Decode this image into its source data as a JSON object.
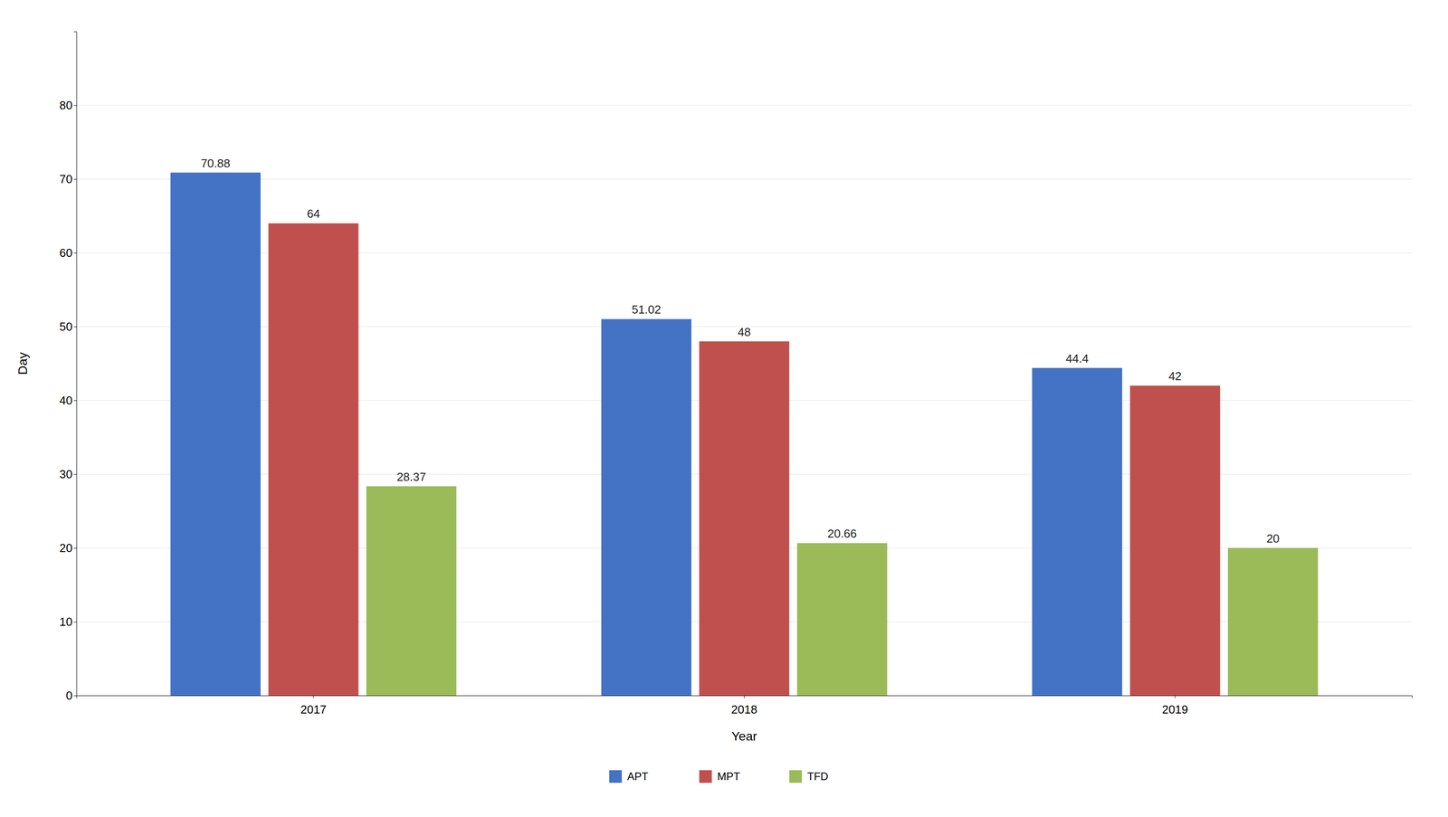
{
  "chart_data": {
    "type": "bar",
    "x_label": "Year",
    "y_label": "Day",
    "categories": [
      "2017",
      "2018",
      "2019"
    ],
    "series": [
      {
        "name": "APT",
        "color": "#4472C4",
        "values": [
          70.88,
          51.02,
          44.4
        ]
      },
      {
        "name": "MPT",
        "color": "#C0504D",
        "values": [
          64,
          48,
          42
        ]
      },
      {
        "name": "TFD",
        "color": "#9BBB59",
        "values": [
          28.37,
          20.66,
          20
        ]
      }
    ],
    "ylim": [
      0,
      90
    ],
    "yticks": [
      0,
      10,
      20,
      30,
      40,
      50,
      60,
      70,
      80
    ],
    "grid": true,
    "legend": "bottom",
    "data_labels": true
  }
}
